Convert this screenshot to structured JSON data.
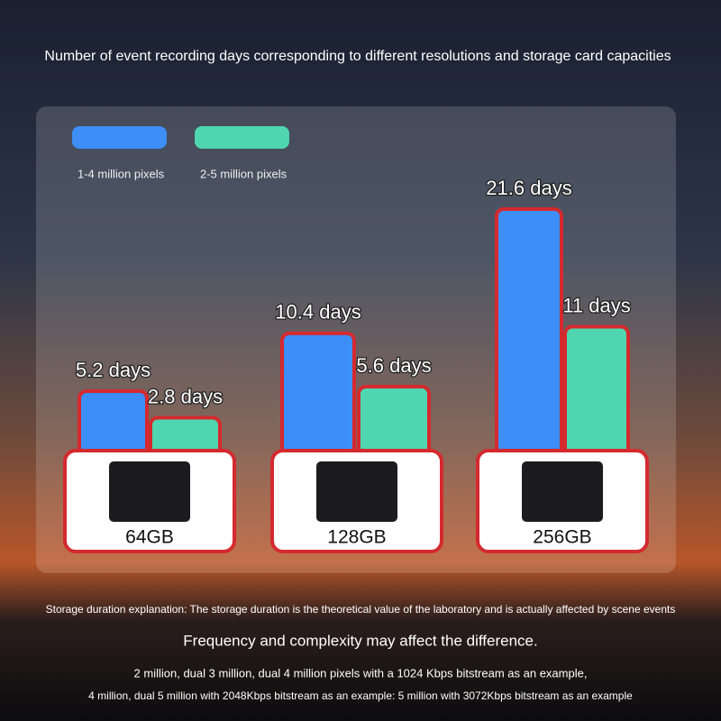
{
  "chart_data": {
    "type": "bar",
    "title": "Number of event recording days corresponding to different resolutions and storage card capacities",
    "categories": [
      "64GB",
      "128GB",
      "256GB"
    ],
    "series": [
      {
        "name": "1-4 million pixels",
        "color": "#3d8ef6",
        "values": [
          5.2,
          10.4,
          21.6
        ],
        "value_labels": [
          "5.2 days",
          "10.4 days",
          "21.6 days"
        ]
      },
      {
        "name": "2-5 million pixels",
        "color": "#4fd6b0",
        "values": [
          2.8,
          5.6,
          11
        ],
        "value_labels": [
          "2.8 days",
          "5.6 days",
          "11 days"
        ]
      }
    ],
    "notes": [
      "Storage duration explanation: The storage duration is the theoretical value of the laboratory and is actually affected by scene events",
      "Frequency and complexity may affect the difference.",
      "2 million, dual 3 million, dual 4 million pixels with a 1024 Kbps bitstream as an example,",
      "4 million, dual 5 million with 2048Kbps bitstream as an example: 5 million with 3072Kbps bitstream as an example"
    ]
  }
}
